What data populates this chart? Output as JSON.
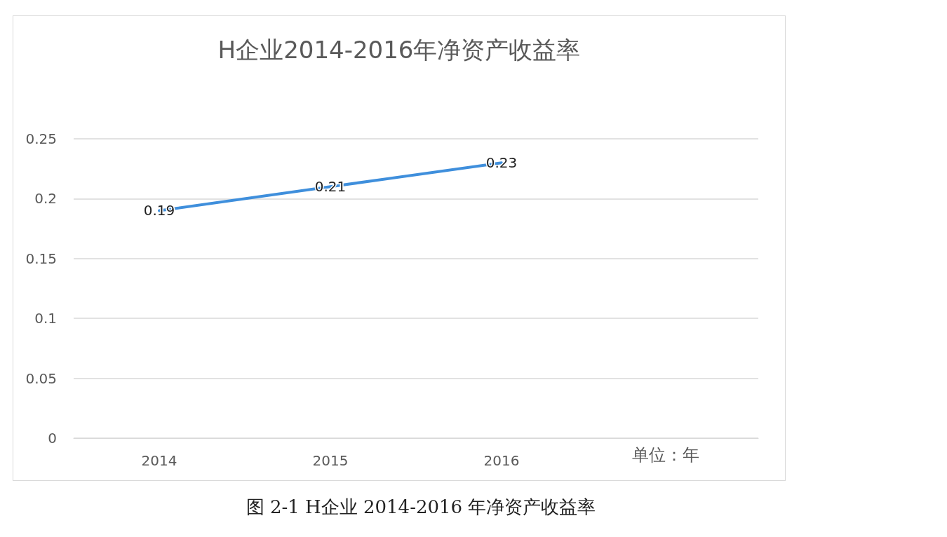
{
  "chart_data": {
    "type": "line",
    "title": "H企业2014-2016年净资产收益率",
    "xlabel": "单位：年",
    "categories": [
      "2014",
      "2015",
      "2016",
      null
    ],
    "series": [
      {
        "color": "#3f8fdc",
        "values": [
          0.19,
          0.21,
          0.23,
          null
        ]
      }
    ],
    "ylim": [
      0,
      0.25
    ],
    "yticks": [
      0,
      0.05,
      0.1,
      0.15,
      0.2,
      0.25
    ],
    "grid": "y",
    "marker": "none",
    "line_style": "solid",
    "data_labels": true,
    "annotations": [
      "图 2-1 H企业 2014-2016 年净资产收益率"
    ]
  }
}
